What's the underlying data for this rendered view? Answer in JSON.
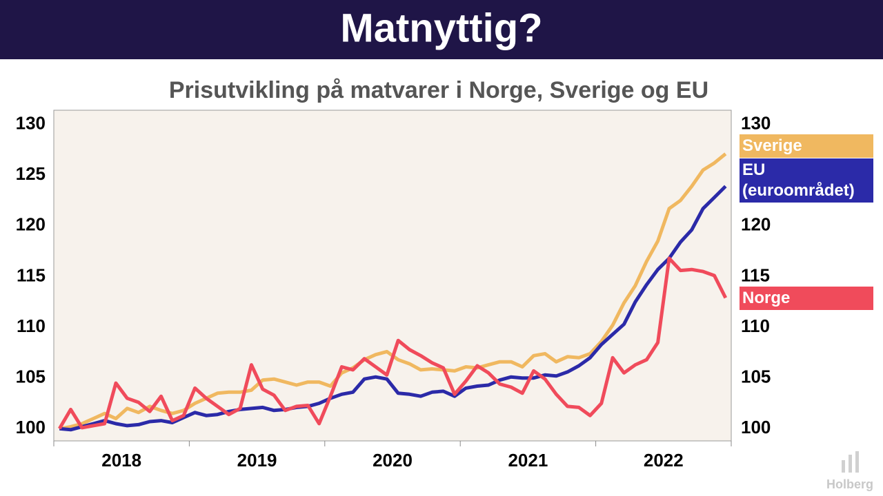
{
  "slide": {
    "title": "Matnyttig?",
    "logo": "Holberg"
  },
  "chart_data": {
    "type": "line",
    "title": "Prisutvikling på matvarer i Norge, Sverige og EU",
    "categories": [
      null,
      null,
      null,
      null,
      null,
      null,
      "2018",
      null,
      null,
      null,
      null,
      null,
      null,
      null,
      null,
      null,
      null,
      null,
      "2019",
      null,
      null,
      null,
      null,
      null,
      null,
      null,
      null,
      null,
      null,
      null,
      "2020",
      null,
      null,
      null,
      null,
      null,
      null,
      null,
      null,
      null,
      null,
      null,
      "2021",
      null,
      null,
      null,
      null,
      null,
      null,
      null,
      null,
      null,
      null,
      null,
      "2022",
      null,
      null,
      null,
      null,
      null
    ],
    "series": [
      {
        "name": "Sverige",
        "color": "#f0b860",
        "values": [
          100.0,
          100.2,
          100.5,
          101.0,
          101.5,
          101.0,
          102.0,
          101.6,
          102.2,
          101.8,
          101.5,
          101.8,
          102.5,
          103.0,
          103.5,
          103.6,
          103.6,
          103.8,
          104.8,
          104.9,
          104.6,
          104.3,
          104.6,
          104.6,
          104.2,
          105.5,
          106.0,
          106.8,
          107.3,
          107.6,
          106.8,
          106.4,
          105.8,
          105.9,
          105.8,
          105.7,
          106.1,
          106.0,
          106.3,
          106.6,
          106.6,
          106.1,
          107.2,
          107.4,
          106.6,
          107.1,
          107.0,
          107.4,
          108.6,
          110.2,
          112.4,
          114.1,
          116.5,
          118.5,
          121.7,
          122.5,
          123.9,
          125.5,
          126.2,
          127.1
        ]
      },
      {
        "name": "EU (euroområdet)",
        "color": "#2b2aa8",
        "values": [
          100.0,
          99.9,
          100.2,
          100.5,
          100.8,
          100.5,
          100.3,
          100.4,
          100.7,
          100.8,
          100.6,
          101.1,
          101.6,
          101.3,
          101.4,
          101.7,
          101.9,
          102.0,
          102.1,
          101.8,
          101.9,
          102.1,
          102.2,
          102.5,
          103.0,
          103.4,
          103.6,
          104.9,
          105.1,
          104.9,
          103.5,
          103.4,
          103.2,
          103.6,
          103.7,
          103.2,
          104.0,
          104.2,
          104.3,
          104.8,
          105.1,
          105.0,
          105.0,
          105.3,
          105.2,
          105.6,
          106.2,
          107.0,
          108.3,
          109.3,
          110.3,
          112.5,
          114.2,
          115.7,
          116.8,
          118.4,
          119.6,
          121.7,
          122.8,
          123.9
        ]
      },
      {
        "name": "Norge",
        "color": "#f04b5b",
        "values": [
          100.0,
          101.9,
          100.1,
          100.3,
          100.5,
          104.5,
          103.0,
          102.6,
          101.7,
          103.2,
          100.8,
          101.3,
          104.0,
          103.0,
          102.2,
          101.4,
          102.0,
          106.3,
          103.9,
          103.3,
          101.8,
          102.2,
          102.3,
          100.5,
          103.2,
          106.1,
          105.8,
          106.9,
          106.1,
          105.3,
          108.7,
          107.8,
          107.2,
          106.5,
          106.0,
          103.4,
          104.7,
          106.2,
          105.5,
          104.4,
          104.1,
          103.5,
          105.7,
          104.9,
          103.4,
          102.2,
          102.1,
          101.3,
          102.5,
          107.0,
          105.5,
          106.3,
          106.8,
          108.5,
          116.8,
          115.6,
          115.7,
          115.5,
          115.1,
          112.9
        ]
      }
    ],
    "ylim": [
      98.8,
      131.4
    ],
    "yticks": [
      100,
      105,
      110,
      115,
      120,
      125,
      130
    ],
    "y2lim": [
      98.8,
      131.4
    ],
    "y2ticks": [
      100,
      105,
      110,
      115,
      120,
      125,
      130
    ],
    "legend": "right"
  }
}
